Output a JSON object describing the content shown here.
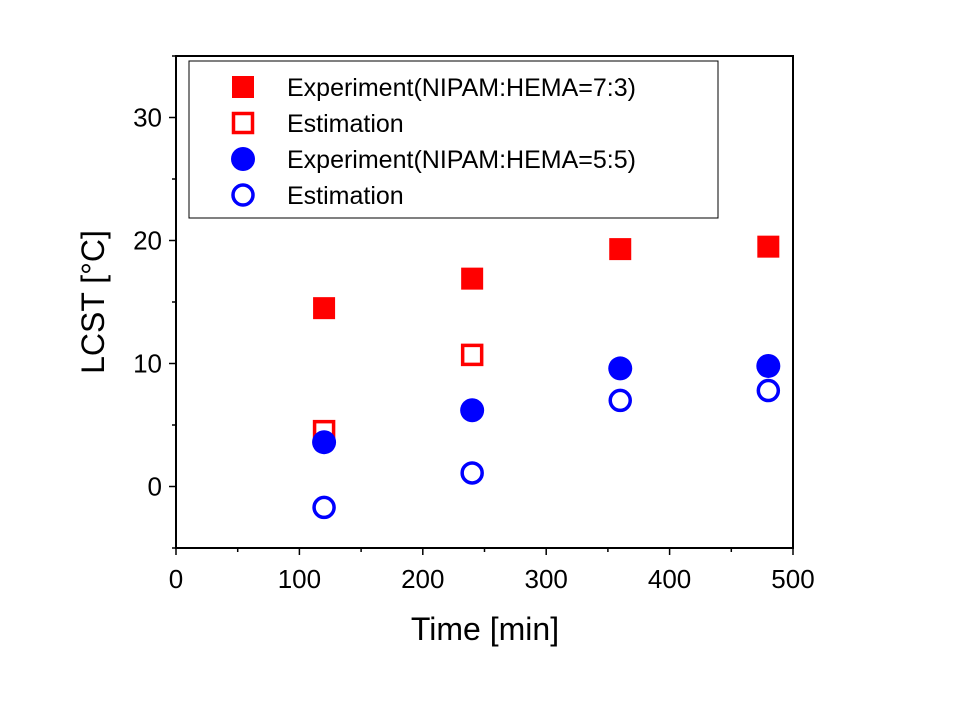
{
  "chart_data": {
    "type": "scatter",
    "title": "",
    "xlabel": "Time [min]",
    "ylabel": "LCST [°C]",
    "xlim": [
      0,
      500
    ],
    "ylim": [
      -5,
      35
    ],
    "xticks": [
      0,
      100,
      200,
      300,
      400,
      500
    ],
    "yticks": [
      0,
      10,
      20,
      30
    ],
    "grid": false,
    "legend_position": "top",
    "series": [
      {
        "name": "Experiment(NIPAM:HEMA=7:3)",
        "marker": "square",
        "filled": true,
        "color": "#ff0000",
        "x": [
          120,
          240,
          360,
          480
        ],
        "y": [
          14.5,
          16.9,
          19.3,
          19.5
        ]
      },
      {
        "name": "Estimation",
        "marker": "square",
        "filled": false,
        "color": "#ff0000",
        "x": [
          120,
          240
        ],
        "y": [
          4.5,
          10.7
        ]
      },
      {
        "name": "Experiment(NIPAM:HEMA=5:5)",
        "marker": "circle",
        "filled": true,
        "color": "#0000ff",
        "x": [
          120,
          240,
          360,
          480
        ],
        "y": [
          3.6,
          6.2,
          9.6,
          9.8
        ]
      },
      {
        "name": "Estimation",
        "marker": "circle",
        "filled": false,
        "color": "#0000ff",
        "x": [
          120,
          240,
          360,
          480
        ],
        "y": [
          -1.7,
          1.1,
          7.0,
          7.8
        ]
      }
    ]
  }
}
